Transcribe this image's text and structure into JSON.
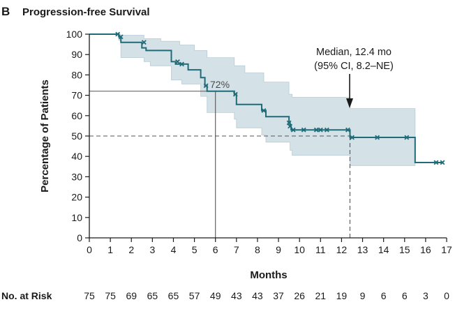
{
  "panel": {
    "letter": "B",
    "title": "Progression-free Survival"
  },
  "annotations": {
    "median_line1": "Median, 12.4 mo",
    "median_line2": "(95% CI, 8.2–NE)",
    "pct_label": "72%"
  },
  "risk": {
    "title": "No. at Risk",
    "values": [
      "75",
      "75",
      "69",
      "65",
      "65",
      "57",
      "49",
      "43",
      "43",
      "37",
      "26",
      "21",
      "19",
      "9",
      "6",
      "6",
      "3",
      "0"
    ]
  },
  "colors": {
    "curve": "#1f6b78",
    "band": "#d4e1e7",
    "band_edge": "#b9ccd5",
    "ref": "#555555"
  },
  "chart_data": {
    "type": "line",
    "title": "Progression-free Survival",
    "xlabel": "Months",
    "ylabel": "Percentage of Patients",
    "xlim": [
      0,
      17
    ],
    "ylim": [
      0,
      100
    ],
    "xticks": [
      0,
      1,
      2,
      3,
      4,
      5,
      6,
      7,
      8,
      9,
      10,
      11,
      12,
      13,
      14,
      15,
      16,
      17
    ],
    "yticks": [
      0,
      10,
      20,
      30,
      40,
      50,
      60,
      70,
      80,
      90,
      100
    ],
    "grid": false,
    "series": [
      {
        "steps": [
          [
            0,
            100
          ],
          [
            1.4,
            98.7
          ],
          [
            1.5,
            96
          ],
          [
            2.5,
            93.3
          ],
          [
            2.7,
            92
          ],
          [
            3.9,
            86.5
          ],
          [
            4.1,
            85.3
          ],
          [
            4.7,
            82.5
          ],
          [
            5.3,
            78.7
          ],
          [
            5.5,
            74.7
          ],
          [
            5.6,
            72
          ],
          [
            6.9,
            70.5
          ],
          [
            7.0,
            65.5
          ],
          [
            8.2,
            62.5
          ],
          [
            8.4,
            59.5
          ],
          [
            9.5,
            56.5
          ],
          [
            9.55,
            54.8
          ],
          [
            9.6,
            53
          ],
          [
            12.4,
            49.3
          ],
          [
            15.5,
            37
          ]
        ],
        "end_x": 16.8,
        "censored": [
          [
            1.35,
            100
          ],
          [
            1.5,
            98.7
          ],
          [
            2.6,
            96
          ],
          [
            4.2,
            86.5
          ],
          [
            4.4,
            85.3
          ],
          [
            5.55,
            74.7
          ],
          [
            6.95,
            70.5
          ],
          [
            8.3,
            62.5
          ],
          [
            9.5,
            56.5
          ],
          [
            9.55,
            54.8
          ],
          [
            9.7,
            53
          ],
          [
            10.2,
            53
          ],
          [
            10.8,
            53
          ],
          [
            11.0,
            53
          ],
          [
            11.3,
            53
          ],
          [
            12.3,
            53
          ],
          [
            12.5,
            49.3
          ],
          [
            13.7,
            49.3
          ],
          [
            15.1,
            49.3
          ],
          [
            16.5,
            37
          ],
          [
            16.8,
            37
          ]
        ]
      }
    ],
    "confidence_band": {
      "upper": [
        [
          0,
          100
        ],
        [
          1.4,
          100
        ],
        [
          1.5,
          99.5
        ],
        [
          2.6,
          97.8
        ],
        [
          3.4,
          96.5
        ],
        [
          4.3,
          94.7
        ],
        [
          5.0,
          92
        ],
        [
          5.6,
          88.5
        ],
        [
          6.9,
          84.5
        ],
        [
          7.4,
          81
        ],
        [
          8.3,
          76.5
        ],
        [
          9.5,
          70.5
        ],
        [
          9.65,
          69
        ],
        [
          12.4,
          63.5
        ],
        [
          15.5,
          61
        ]
      ],
      "lower": [
        [
          0,
          100
        ],
        [
          1.4,
          97
        ],
        [
          1.5,
          88.5
        ],
        [
          2.6,
          86.5
        ],
        [
          2.9,
          84.5
        ],
        [
          3.9,
          77.5
        ],
        [
          4.4,
          75.5
        ],
        [
          5.3,
          69.5
        ],
        [
          5.6,
          61.5
        ],
        [
          6.9,
          58.3
        ],
        [
          7.0,
          54
        ],
        [
          8.2,
          50.5
        ],
        [
          8.4,
          47
        ],
        [
          9.55,
          43
        ],
        [
          9.65,
          40.5
        ],
        [
          12.4,
          35.5
        ],
        [
          15.5,
          35.5
        ]
      ]
    },
    "reference_lines": [
      {
        "x": 6,
        "y": 72,
        "style": "solid"
      },
      {
        "x": 12.4,
        "y": 50,
        "style": "dashed"
      }
    ],
    "median_months": 12.4,
    "rate_at_6_months": 72
  }
}
